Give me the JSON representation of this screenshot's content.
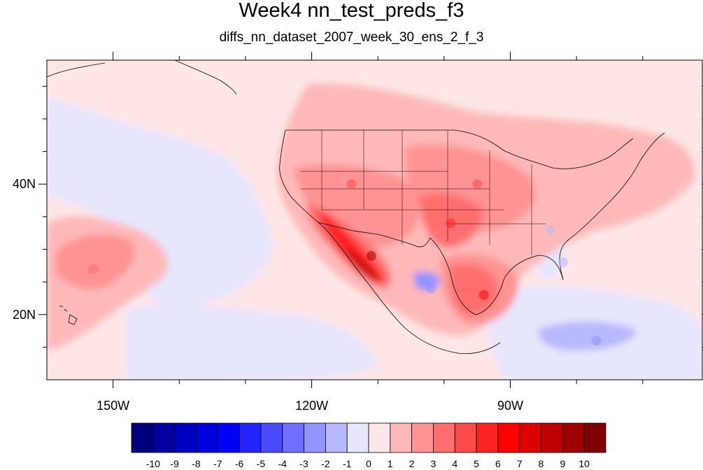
{
  "figure": {
    "title": "Week4 nn_test_preds_f3",
    "subtitle": "diffs_nn_dataset_2007_week_30_ens_2_f_3"
  },
  "map": {
    "projection": "cylindrical-equidistant",
    "lon_range": [
      -160,
      -61
    ],
    "lat_range": [
      10,
      59
    ],
    "lat_ticks": [
      {
        "value": 40,
        "label": "40N"
      },
      {
        "value": 20,
        "label": "20N"
      }
    ],
    "lon_ticks": [
      {
        "value": -150,
        "label": "150W"
      },
      {
        "value": -120,
        "label": "120W"
      },
      {
        "value": -90,
        "label": "90W"
      }
    ],
    "background_value": 0.5,
    "features": [
      {
        "name": "southwest-desert-maximum",
        "lon": -111,
        "lat": 29,
        "value": 9
      },
      {
        "name": "gulf-of-mexico-maximum",
        "lon": -94,
        "lat": 23,
        "value": 6
      },
      {
        "name": "southern-plains-maximum",
        "lon": -99,
        "lat": 34,
        "value": 5
      },
      {
        "name": "central-plains-warm-area",
        "lon": -95,
        "lat": 40,
        "value": 4
      },
      {
        "name": "great-basin-warm-area",
        "lon": -114,
        "lat": 40,
        "value": 4
      },
      {
        "name": "subtropical-pacific-warm-area",
        "lon": -153,
        "lat": 27,
        "value": 3
      },
      {
        "name": "mexico-cool-area",
        "lon": -102,
        "lat": 24,
        "value": -3
      },
      {
        "name": "caribbean-cool-area",
        "lon": -77,
        "lat": 16,
        "value": -3
      },
      {
        "name": "florida-cool-area",
        "lon": -82,
        "lat": 28,
        "value": -2
      },
      {
        "name": "southeast-us-cool-area",
        "lon": -84,
        "lat": 33,
        "value": -2
      },
      {
        "name": "eastern-pacific-cool-area",
        "lon": -132,
        "lat": 16,
        "value": -1
      }
    ]
  },
  "colorbar": {
    "labels": [
      "-10",
      "-9",
      "-8",
      "-7",
      "-6",
      "-5",
      "-4",
      "-3",
      "-2",
      "-1",
      "0",
      "1",
      "2",
      "3",
      "4",
      "5",
      "6",
      "7",
      "8",
      "9",
      "10"
    ],
    "colors": [
      "#00007f",
      "#00009f",
      "#0000bf",
      "#0000df",
      "#0000ff",
      "#2424ff",
      "#4a4aff",
      "#6e6eff",
      "#9393ff",
      "#b8b8ff",
      "#e6e6ff",
      "#ffe6e6",
      "#ffb8b8",
      "#ff9393",
      "#ff6e6e",
      "#ff4a4a",
      "#ff2424",
      "#ff0000",
      "#df0000",
      "#bf0000",
      "#9f0000",
      "#7f0000"
    ]
  }
}
